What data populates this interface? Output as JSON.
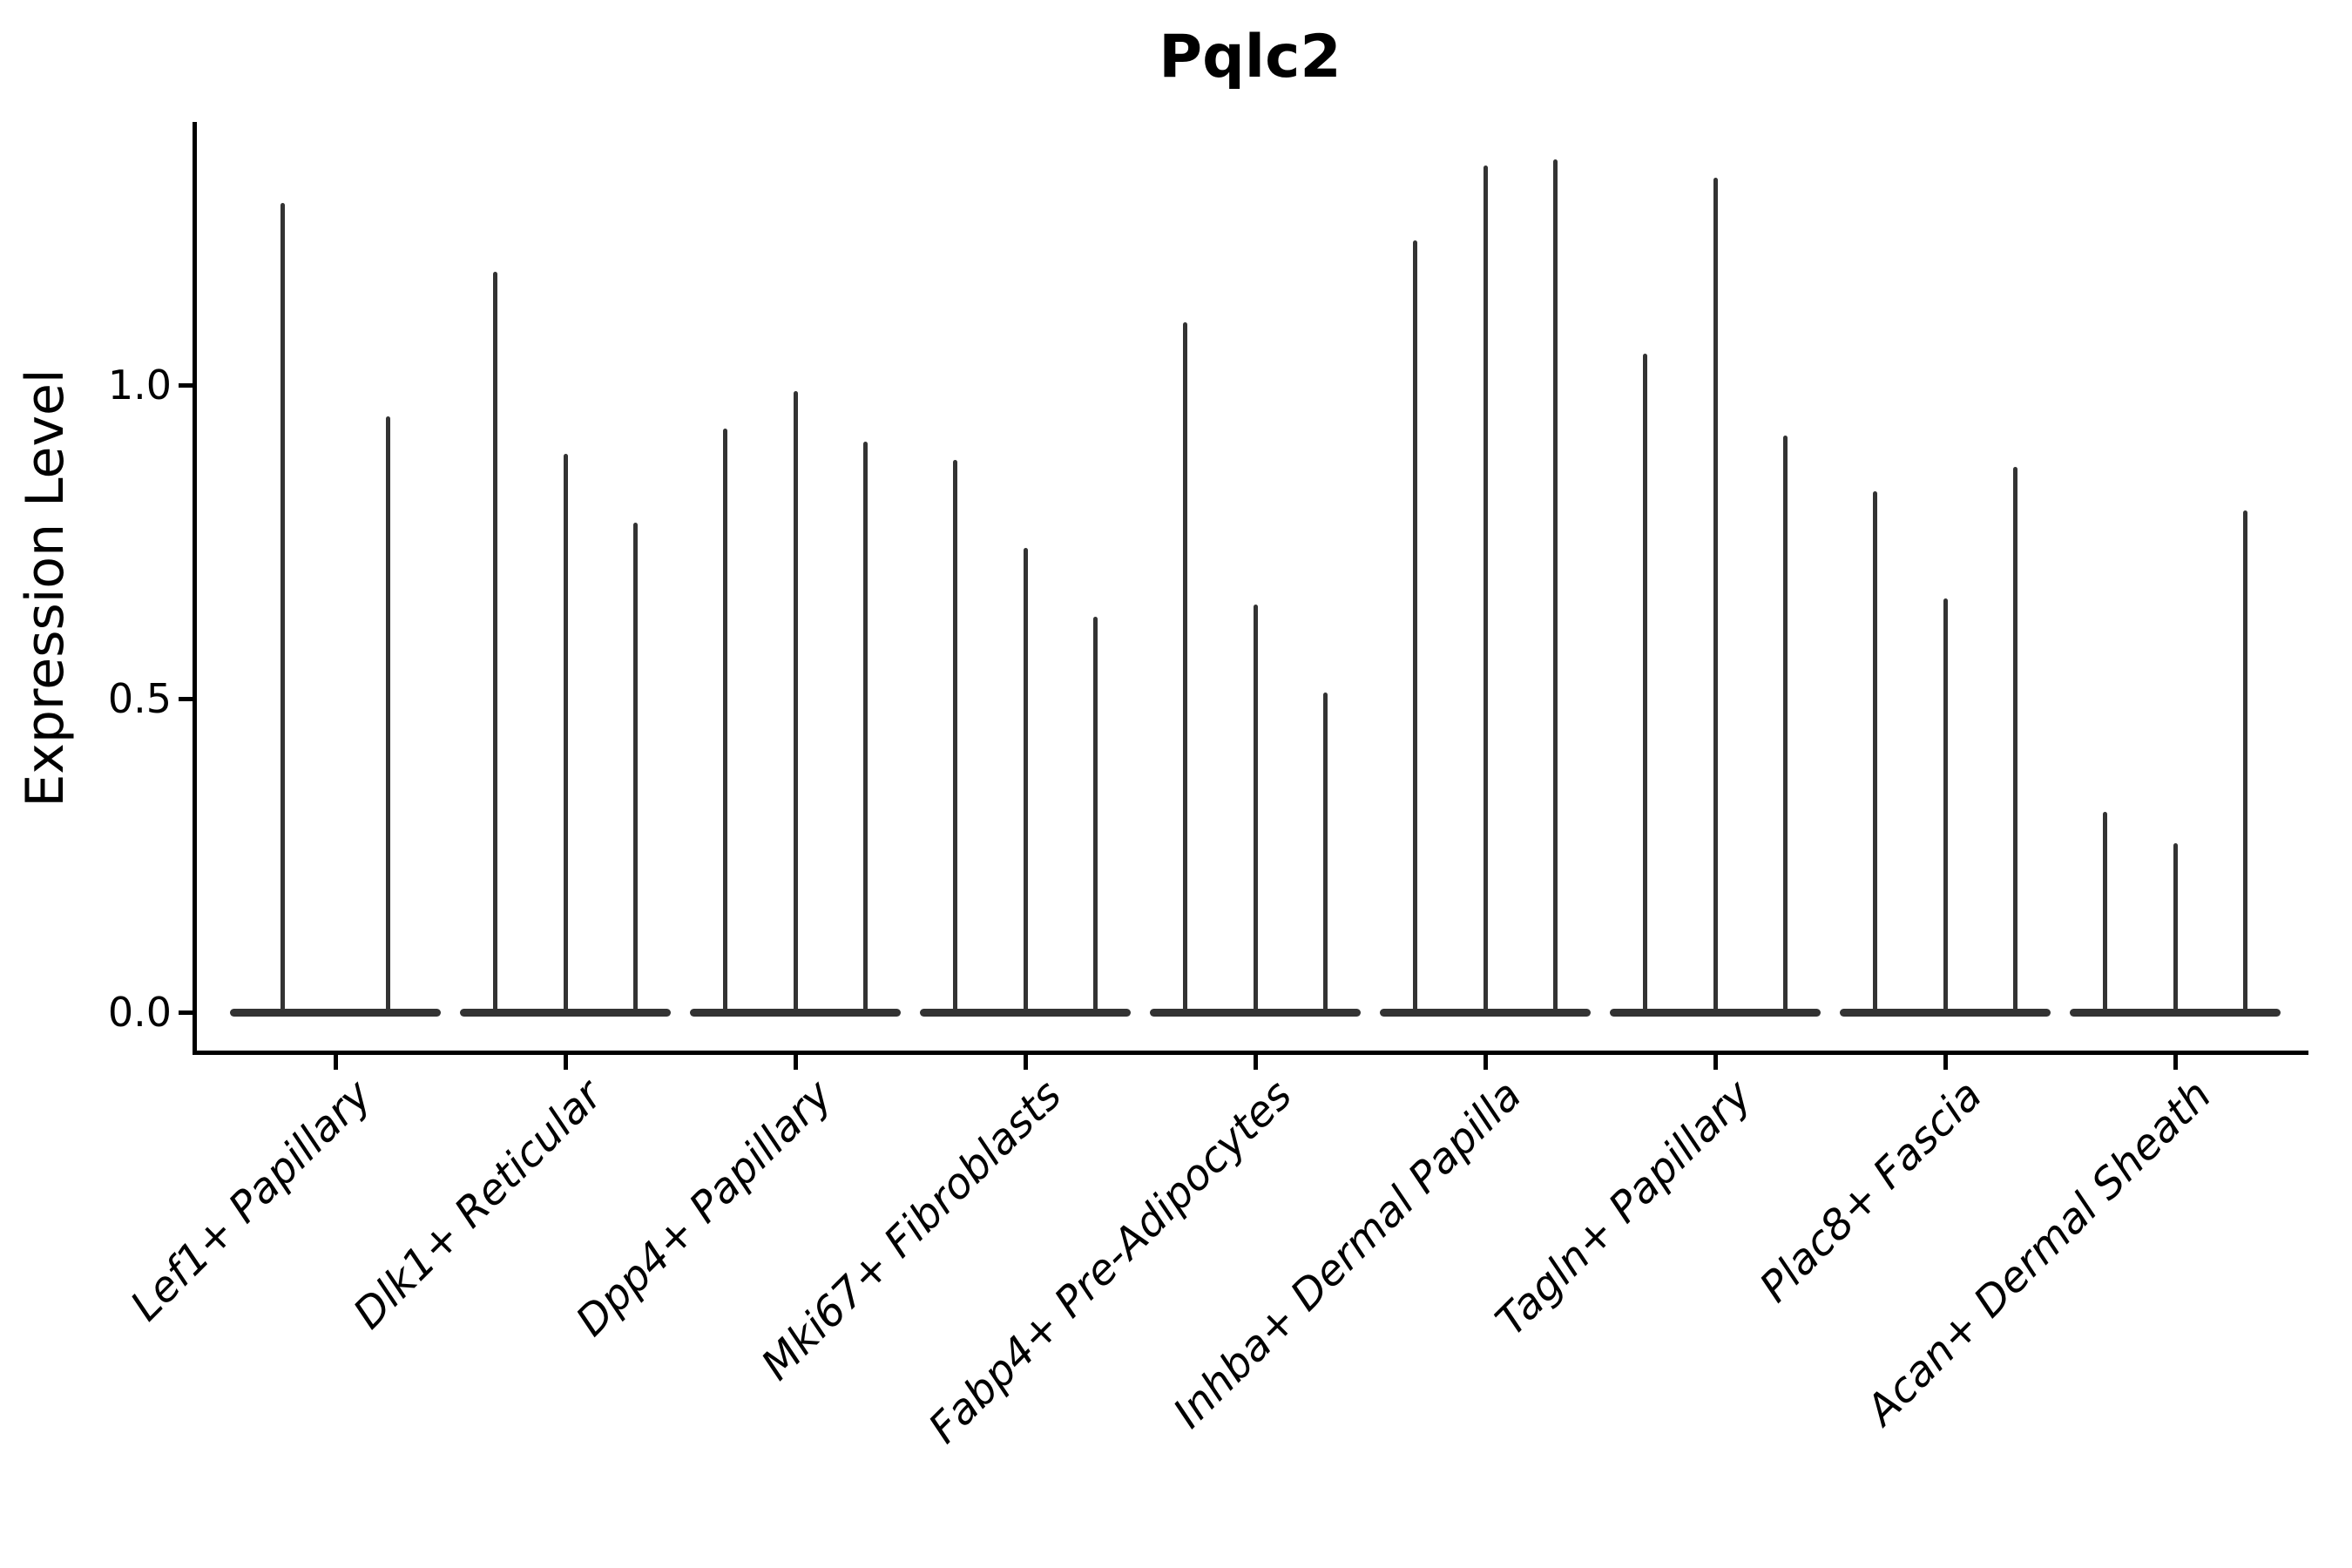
{
  "chart_data": {
    "type": "violin",
    "title": "Pqlc2",
    "ylabel": "Expression Level",
    "xlabel": "",
    "ylim": [
      -0.07,
      1.42
    ],
    "grid": false,
    "legend_position": "none",
    "x_tick_rotation": 45,
    "x_tick_style": "italic",
    "yticks": [
      {
        "label": "0.0",
        "value": 0.0
      },
      {
        "label": "0.5",
        "value": 0.5
      },
      {
        "label": "1.0",
        "value": 1.0
      }
    ],
    "categories": [
      {
        "label": "Lef1+ Papillary",
        "violin_max": [
          1.29,
          0.95
        ]
      },
      {
        "label": "Dlk1+ Reticular",
        "violin_max": [
          1.18,
          0.89,
          0.78
        ]
      },
      {
        "label": "Dpp4+ Papillary",
        "violin_max": [
          0.93,
          0.99,
          0.91
        ]
      },
      {
        "label": "Mki67+ Fibroblasts",
        "violin_max": [
          0.88,
          0.74,
          0.63
        ]
      },
      {
        "label": "Fabp4+ Pre-Adipocytes",
        "violin_max": [
          1.1,
          0.65,
          0.51
        ]
      },
      {
        "label": "Inhba+ Dermal Papilla",
        "violin_max": [
          1.23,
          1.35,
          1.36
        ]
      },
      {
        "label": "Tagln+ Papillary",
        "violin_max": [
          1.05,
          1.33,
          0.92
        ]
      },
      {
        "label": "Plac8+ Fascia",
        "violin_max": [
          0.83,
          0.66,
          0.87
        ]
      },
      {
        "label": "Acan+ Dermal Sheath",
        "violin_max": [
          0.32,
          0.27,
          0.8
        ]
      }
    ],
    "colors": {
      "violin": "#333333",
      "axis": "#000000",
      "text": "#000000",
      "background": "#ffffff"
    }
  }
}
